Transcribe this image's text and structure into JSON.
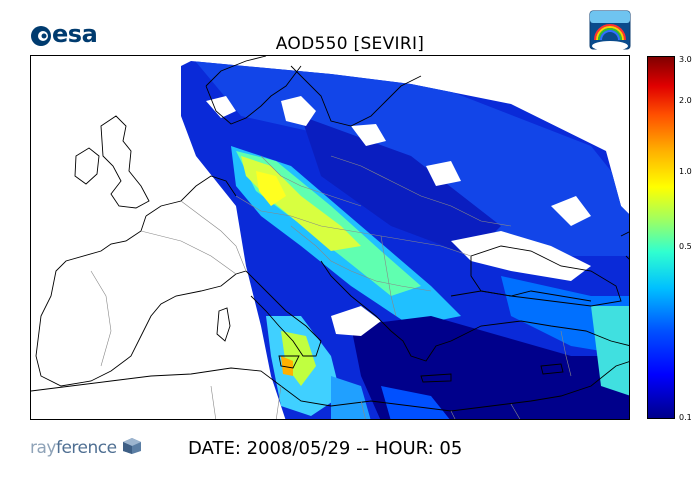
{
  "logos": {
    "esa": "esa",
    "rayference_light": "ray",
    "rayference_dark": "ference"
  },
  "title": "AOD550   [SEVIRI]",
  "footer": {
    "date_line": "DATE: 2008/05/29 -- HOUR: 05"
  },
  "colorbar": {
    "ticks": [
      "3.0",
      "2.0",
      "1.0",
      "0.5",
      "0.1"
    ],
    "scale": "log",
    "range": [
      0.1,
      3.0
    ],
    "colormap": "jet"
  },
  "colors": {
    "low": "#00008b",
    "mid_low": "#0000ff",
    "mid": "#00c0ff",
    "mid_high": "#ffff00",
    "high": "#800000",
    "background": "#ffffff",
    "coastline": "#000000"
  },
  "icons": {
    "esa_mark": "esa-mark-icon",
    "theme_logo": "rainbow-globe-icon",
    "rayference_mark": "cube-icon"
  }
}
